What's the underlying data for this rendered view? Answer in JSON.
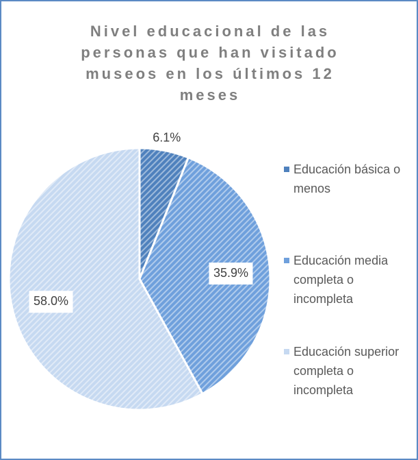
{
  "chart_data": {
    "type": "pie",
    "title": "Nivel educacional de las personas que han visitado museos en los últimos 12 meses",
    "categories": [
      "Educación básica o menos",
      "Educación media completa o incompleta",
      "Educación superior completa o incompleta"
    ],
    "values": [
      6.1,
      35.9,
      58.0
    ],
    "value_labels": [
      "6.1%",
      "35.9%",
      "58.0%"
    ],
    "colors": [
      "#4f81bd",
      "#6fa0dc",
      "#c6d9f1"
    ]
  }
}
